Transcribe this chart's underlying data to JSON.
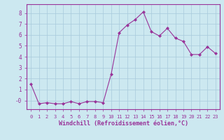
{
  "x": [
    0,
    1,
    2,
    3,
    4,
    5,
    6,
    7,
    8,
    9,
    10,
    11,
    12,
    13,
    14,
    15,
    16,
    17,
    18,
    19,
    20,
    21,
    22,
    23
  ],
  "y": [
    1.5,
    -0.3,
    -0.2,
    -0.3,
    -0.3,
    -0.1,
    -0.3,
    -0.1,
    -0.1,
    -0.2,
    2.4,
    6.2,
    6.9,
    7.4,
    8.1,
    6.3,
    5.9,
    6.6,
    5.7,
    5.4,
    4.2,
    4.2,
    4.9,
    4.3
  ],
  "line_color": "#993399",
  "marker": "D",
  "marker_size": 2,
  "bg_color": "#cce8f0",
  "grid_color": "#aaccdd",
  "xlabel": "Windchill (Refroidissement éolien,°C)",
  "xlabel_color": "#993399",
  "tick_color": "#993399",
  "axis_color": "#993399",
  "ylim": [
    -0.8,
    8.8
  ],
  "xlim": [
    -0.5,
    23.5
  ],
  "yticks": [
    0,
    1,
    2,
    3,
    4,
    5,
    6,
    7,
    8
  ],
  "ytick_labels": [
    "-0",
    "1",
    "2",
    "3",
    "4",
    "5",
    "6",
    "7",
    "8"
  ],
  "xticks": [
    0,
    1,
    2,
    3,
    4,
    5,
    6,
    7,
    8,
    9,
    10,
    11,
    12,
    13,
    14,
    15,
    16,
    17,
    18,
    19,
    20,
    21,
    22,
    23
  ]
}
